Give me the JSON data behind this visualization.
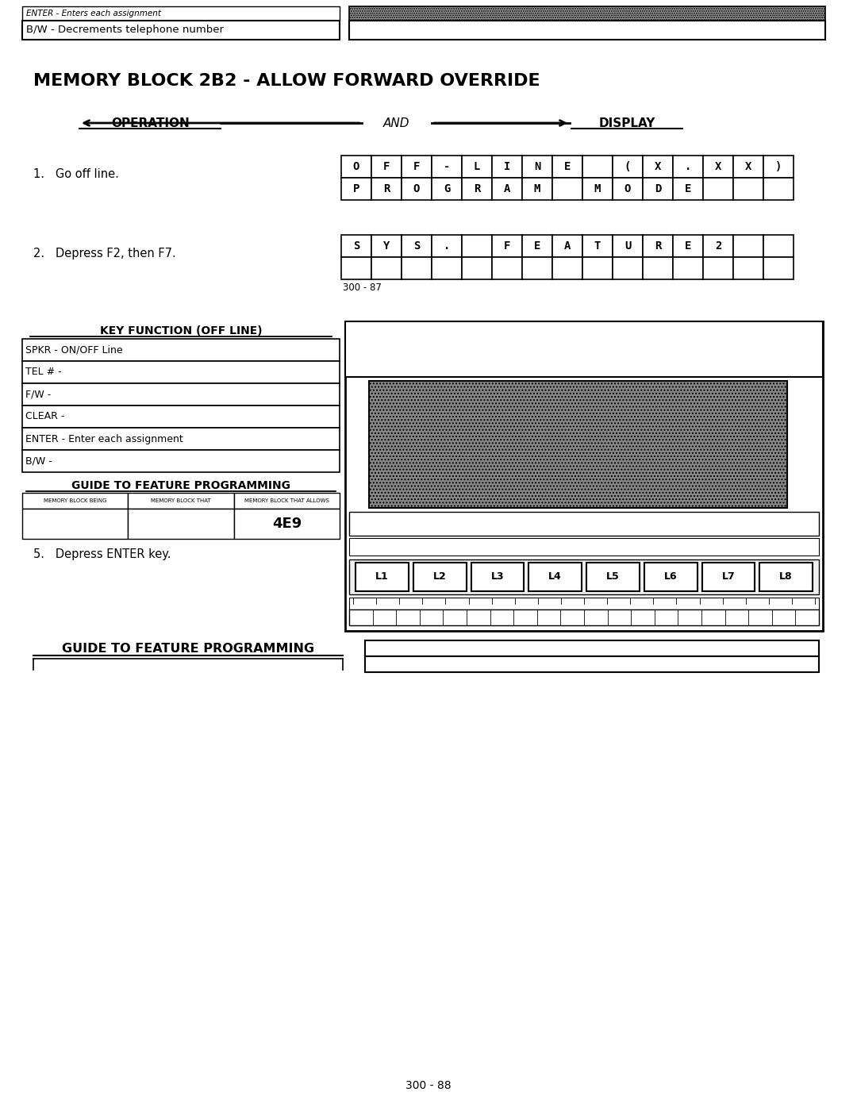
{
  "bg_color": "#ffffff",
  "page_number": "300 - 88",
  "title": "MEMORY BLOCK 2B2 - ALLOW FORWARD OVERRIDE",
  "top_left_text_italic": "ENTER - Enters each assignment",
  "top_left_text2": "B/W - Decrements telephone number",
  "operation_label": "OPERATION",
  "display_label": "DISPLAY",
  "and_label": "AND",
  "step1_text": "1.   Go off line.",
  "step1_row1": [
    "O",
    "F",
    "F",
    "-",
    "L",
    "I",
    "N",
    "E",
    "",
    "(",
    "X",
    ".",
    "X",
    "X",
    ")"
  ],
  "step1_row2": [
    "P",
    "R",
    "O",
    "G",
    "R",
    "A",
    "M",
    "",
    "M",
    "O",
    "D",
    "E",
    "",
    "",
    ""
  ],
  "step2_text": "2.   Depress F2, then F7.",
  "step2_row1": [
    "S",
    "Y",
    "S",
    ".",
    " ",
    "F",
    "E",
    "A",
    "T",
    "U",
    "R",
    "E",
    "2",
    "",
    ""
  ],
  "step2_label": "300 - 87",
  "key_function_title": "KEY FUNCTION (OFF LINE)",
  "key_function_rows": [
    "SPKR - ON/OFF Line",
    "TEL # -",
    "F/W -",
    "CLEAR -",
    "ENTER - Enter each assignment",
    "B/W -"
  ],
  "guide_title1": "GUIDE TO FEATURE PROGRAMMING",
  "guide_col_headers": [
    "MEMORY BLOCK BEING",
    "MEMORY BLOCK THAT",
    "MEMORY BLOCK THAT ALLOWS"
  ],
  "guide_value": "4E9",
  "step5_text": "5.   Depress ENTER key.",
  "guide_title2": "GUIDE TO FEATURE PROGRAMMING",
  "l_buttons": [
    "L1",
    "L2",
    "L3",
    "L4",
    "L5",
    "L6",
    "L7",
    "L8"
  ]
}
